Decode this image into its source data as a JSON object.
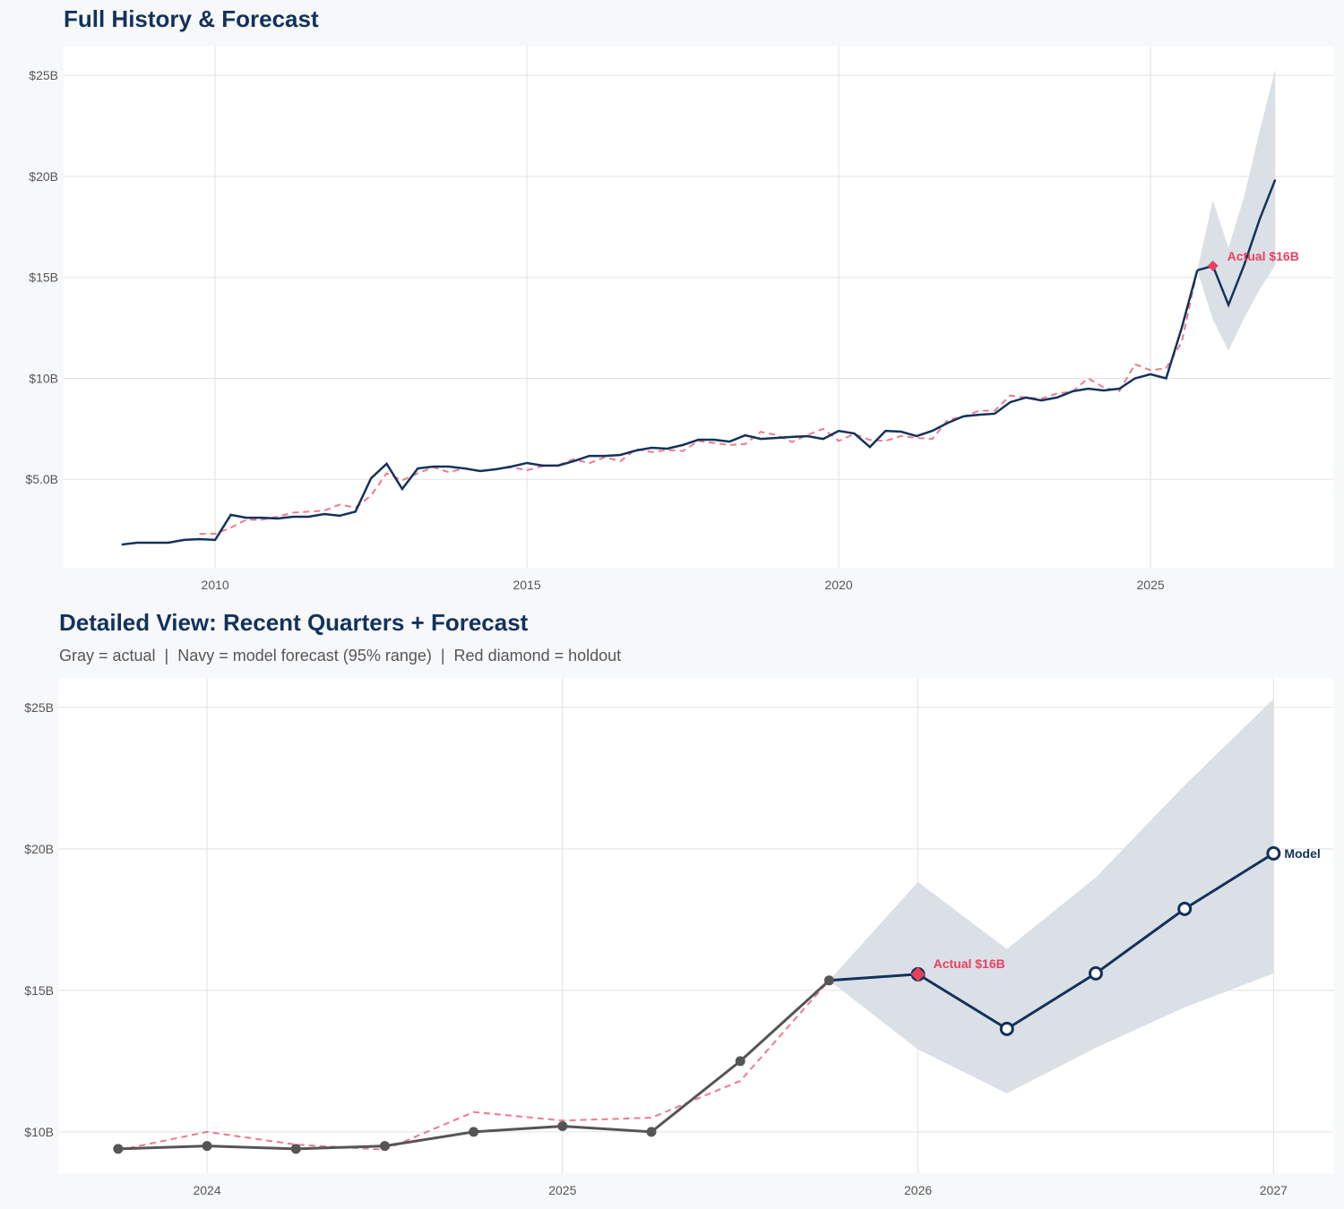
{
  "colors": {
    "navy": "#13325b",
    "gray": "#555555",
    "red": "#e8405f",
    "band": "#d9dee5",
    "grid": "#e2e2e2"
  },
  "chart_data": [
    {
      "type": "line",
      "title": "Full History & Forecast",
      "xlim": [
        2007.57,
        2027.93
      ],
      "ylim": [
        0.62,
        26.43
      ],
      "x_ticks": [
        {
          "value": 2010,
          "label": "2010"
        },
        {
          "value": 2015,
          "label": "2015"
        },
        {
          "value": 2020,
          "label": "2020"
        },
        {
          "value": 2025,
          "label": "2025"
        }
      ],
      "y_ticks": [
        {
          "value": 5,
          "label": "$5.0B"
        },
        {
          "value": 10,
          "label": "$10B"
        },
        {
          "value": 15,
          "label": "$15B"
        },
        {
          "value": 20,
          "label": "$20B"
        },
        {
          "value": 25,
          "label": "$25B"
        }
      ],
      "grid": true,
      "actual": {
        "x": [
          2008.5,
          2008.75,
          2009.0,
          2009.25,
          2009.5,
          2009.75,
          2010.0,
          2010.25,
          2010.5,
          2010.75,
          2011.0,
          2011.25,
          2011.5,
          2011.75,
          2012.0,
          2012.25,
          2012.5,
          2012.75,
          2013.0,
          2013.25,
          2013.5,
          2013.75,
          2014.0,
          2014.25,
          2014.5,
          2014.75,
          2015.0,
          2015.25,
          2015.5,
          2015.75,
          2016.0,
          2016.25,
          2016.5,
          2016.75,
          2017.0,
          2017.25,
          2017.5,
          2017.75,
          2018.0,
          2018.25,
          2018.5,
          2018.75,
          2019.0,
          2019.25,
          2019.5,
          2019.75,
          2020.0,
          2020.25,
          2020.5,
          2020.75,
          2021.0,
          2021.25,
          2021.5,
          2021.75,
          2022.0,
          2022.25,
          2022.5,
          2022.75,
          2023.0,
          2023.25,
          2023.5,
          2023.75,
          2024.0,
          2024.25,
          2024.5,
          2024.75,
          2025.0,
          2025.25,
          2025.5,
          2025.75
        ],
        "y": [
          1.77,
          1.86,
          1.86,
          1.86,
          2.0,
          2.04,
          2.0,
          3.24,
          3.1,
          3.1,
          3.06,
          3.15,
          3.15,
          3.28,
          3.2,
          3.4,
          5.05,
          5.77,
          4.52,
          5.54,
          5.63,
          5.63,
          5.54,
          5.41,
          5.5,
          5.63,
          5.81,
          5.68,
          5.68,
          5.9,
          6.16,
          6.16,
          6.21,
          6.43,
          6.56,
          6.52,
          6.7,
          6.96,
          6.96,
          6.87,
          7.18,
          7.0,
          7.05,
          7.1,
          7.14,
          7.0,
          7.4,
          7.27,
          6.6,
          7.4,
          7.36,
          7.14,
          7.4,
          7.8,
          8.12,
          8.2,
          8.25,
          8.82,
          9.05,
          8.91,
          9.05,
          9.36,
          9.49,
          9.4,
          9.49,
          10.0,
          10.2,
          10.0,
          12.5,
          15.35
        ]
      },
      "fitted": {
        "x": [
          2009.75,
          2010.0,
          2010.25,
          2010.5,
          2010.75,
          2011.0,
          2011.25,
          2011.5,
          2011.75,
          2012.0,
          2012.25,
          2012.5,
          2012.75,
          2013.0,
          2013.25,
          2013.5,
          2013.75,
          2014.0,
          2014.25,
          2014.5,
          2014.75,
          2015.0,
          2015.25,
          2015.5,
          2015.75,
          2016.0,
          2016.25,
          2016.5,
          2016.75,
          2017.0,
          2017.25,
          2017.5,
          2017.75,
          2018.0,
          2018.25,
          2018.5,
          2018.75,
          2019.0,
          2019.25,
          2019.5,
          2019.75,
          2020.0,
          2020.25,
          2020.5,
          2020.75,
          2021.0,
          2021.25,
          2021.5,
          2021.75,
          2022.0,
          2022.25,
          2022.5,
          2022.75,
          2023.0,
          2023.25,
          2023.5,
          2023.75,
          2024.0,
          2024.25,
          2024.5,
          2024.75,
          2025.0,
          2025.25,
          2025.5,
          2025.75
        ],
        "y": [
          2.3,
          2.3,
          2.6,
          3.0,
          3.0,
          3.15,
          3.35,
          3.4,
          3.45,
          3.75,
          3.6,
          4.2,
          5.3,
          4.95,
          5.3,
          5.6,
          5.35,
          5.55,
          5.4,
          5.5,
          5.6,
          5.45,
          5.65,
          5.7,
          6.0,
          5.8,
          6.1,
          5.9,
          6.5,
          6.35,
          6.45,
          6.4,
          6.9,
          6.8,
          6.7,
          6.75,
          7.35,
          7.2,
          6.85,
          7.2,
          7.5,
          6.9,
          7.25,
          6.95,
          6.9,
          7.15,
          7.05,
          7.0,
          7.95,
          8.1,
          8.4,
          8.4,
          9.15,
          9.05,
          9.0,
          9.25,
          9.35,
          10.0,
          9.55,
          9.37,
          10.7,
          10.4,
          10.5,
          11.8,
          15.35
        ]
      },
      "forecast": {
        "x": [
          2025.75,
          2026.0,
          2026.25,
          2026.5,
          2026.75,
          2027.0
        ],
        "y": [
          15.35,
          15.57,
          13.64,
          15.6,
          17.88,
          19.84
        ],
        "lower": [
          15.35,
          12.91,
          11.36,
          12.97,
          14.4,
          15.6
        ],
        "upper": [
          15.35,
          18.83,
          16.46,
          18.99,
          22.25,
          25.3
        ]
      },
      "holdout": {
        "x": 2026.0,
        "y": 15.57,
        "label": "Actual $16B"
      }
    },
    {
      "type": "line",
      "title": "Detailed View: Recent Quarters + Forecast",
      "subtitle": "Gray = actual  |  Navy = model forecast (95% range)  |  Red diamond = holdout",
      "xlim": [
        2023.584,
        2027.168
      ],
      "ylim": [
        8.54,
        26.04
      ],
      "x_ticks": [
        {
          "value": 2024,
          "label": "2024"
        },
        {
          "value": 2025,
          "label": "2025"
        },
        {
          "value": 2026,
          "label": "2026"
        },
        {
          "value": 2027,
          "label": "2027"
        }
      ],
      "y_ticks": [
        {
          "value": 10,
          "label": "$10B"
        },
        {
          "value": 15,
          "label": "$15B"
        },
        {
          "value": 20,
          "label": "$20B"
        },
        {
          "value": 25,
          "label": "$25B"
        }
      ],
      "grid": true,
      "actual": {
        "x": [
          2023.75,
          2024.0,
          2024.25,
          2024.5,
          2024.75,
          2025.0,
          2025.25,
          2025.5,
          2025.75
        ],
        "y": [
          9.4,
          9.5,
          9.4,
          9.5,
          10.0,
          10.2,
          10.0,
          12.5,
          15.35
        ]
      },
      "fitted": {
        "x": [
          2023.75,
          2024.0,
          2024.25,
          2024.5,
          2024.75,
          2025.0,
          2025.25,
          2025.5,
          2025.75
        ],
        "y": [
          9.35,
          10.0,
          9.55,
          9.37,
          10.7,
          10.4,
          10.5,
          11.8,
          15.35
        ]
      },
      "forecast": {
        "x": [
          2025.75,
          2026.0,
          2026.25,
          2026.5,
          2026.75,
          2027.0
        ],
        "y": [
          15.35,
          15.57,
          13.64,
          15.6,
          17.88,
          19.84
        ],
        "lower": [
          15.35,
          12.91,
          11.36,
          12.97,
          14.4,
          15.6
        ],
        "upper": [
          15.35,
          18.83,
          16.46,
          18.99,
          22.25,
          25.3
        ],
        "end_label": "Model"
      },
      "holdout": {
        "x": 2026.0,
        "y": 15.57,
        "label": "Actual $16B"
      }
    }
  ]
}
